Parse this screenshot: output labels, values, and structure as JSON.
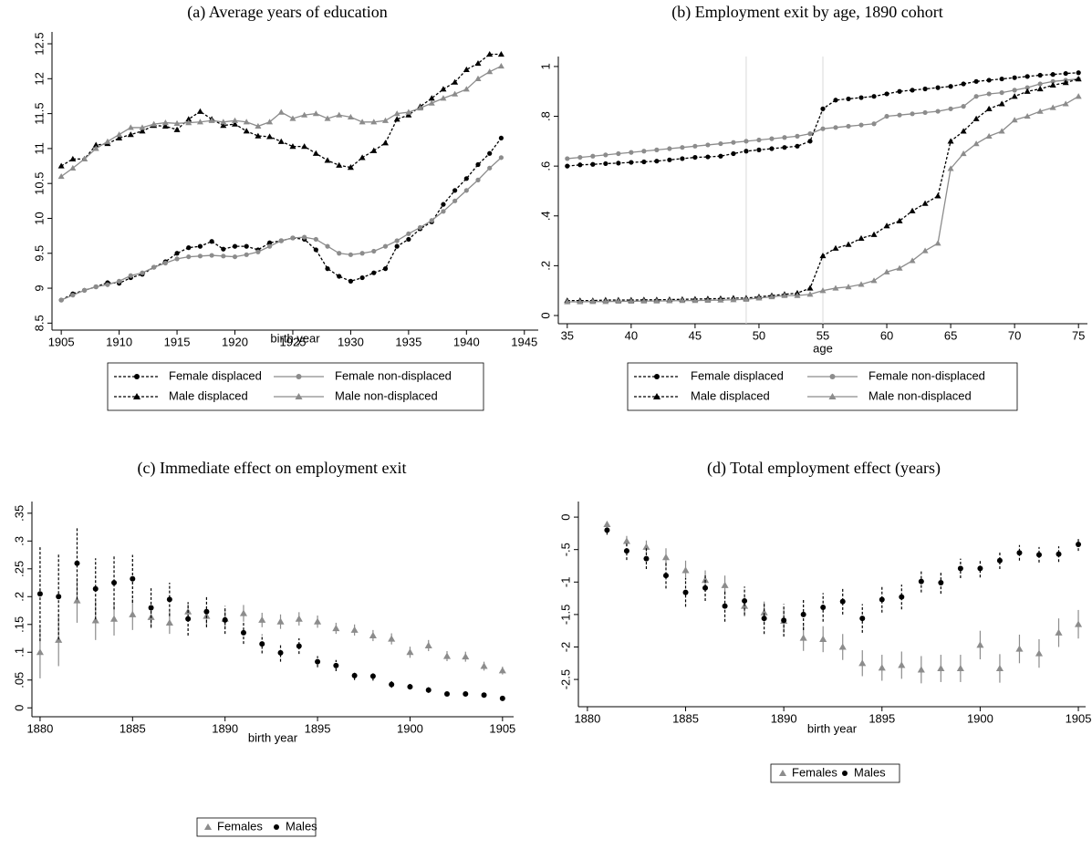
{
  "chart_data": [
    {
      "type": "line",
      "title": "(a) Average years of education",
      "x_label": "birth year",
      "x": [
        1905,
        1906,
        1907,
        1908,
        1909,
        1910,
        1911,
        1912,
        1913,
        1914,
        1915,
        1916,
        1917,
        1918,
        1919,
        1920,
        1921,
        1922,
        1923,
        1924,
        1925,
        1926,
        1927,
        1928,
        1929,
        1930,
        1931,
        1932,
        1933,
        1934,
        1935,
        1936,
        1937,
        1938,
        1939,
        1940,
        1941,
        1942,
        1943
      ],
      "series": [
        {
          "name": "Female displaced",
          "color": "#000000",
          "marker": "circle",
          "line": "dashed",
          "values": [
            8.83,
            8.92,
            8.97,
            9.02,
            9.08,
            9.07,
            9.15,
            9.2,
            9.3,
            9.38,
            9.5,
            9.58,
            9.6,
            9.67,
            9.56,
            9.6,
            9.6,
            9.55,
            9.65,
            9.68,
            9.72,
            9.7,
            9.55,
            9.28,
            9.17,
            9.1,
            9.15,
            9.22,
            9.28,
            9.6,
            9.7,
            9.85,
            9.95,
            10.2,
            10.4,
            10.57,
            10.77,
            10.93,
            11.15
          ]
        },
        {
          "name": "Female non-displaced",
          "color": "#8c8c8c",
          "marker": "circle",
          "line": "solid",
          "values": [
            8.83,
            8.9,
            8.97,
            9.02,
            9.05,
            9.1,
            9.18,
            9.22,
            9.3,
            9.36,
            9.42,
            9.45,
            9.46,
            9.47,
            9.46,
            9.45,
            9.48,
            9.52,
            9.6,
            9.68,
            9.72,
            9.73,
            9.7,
            9.6,
            9.5,
            9.48,
            9.5,
            9.53,
            9.6,
            9.68,
            9.78,
            9.87,
            9.97,
            10.1,
            10.25,
            10.4,
            10.55,
            10.72,
            10.87
          ]
        },
        {
          "name": "Male displaced",
          "color": "#000000",
          "marker": "triangle",
          "line": "dashed",
          "values": [
            10.75,
            10.85,
            10.85,
            11.05,
            11.07,
            11.15,
            11.2,
            11.25,
            11.33,
            11.32,
            11.27,
            11.42,
            11.53,
            11.42,
            11.33,
            11.35,
            11.25,
            11.18,
            11.17,
            11.1,
            11.03,
            11.03,
            10.93,
            10.83,
            10.76,
            10.73,
            10.87,
            10.97,
            11.08,
            11.42,
            11.48,
            11.6,
            11.72,
            11.85,
            11.95,
            12.13,
            12.22,
            12.35,
            12.35
          ]
        },
        {
          "name": "Male non-displaced",
          "color": "#8c8c8c",
          "marker": "triangle",
          "line": "solid",
          "values": [
            10.6,
            10.72,
            10.85,
            11.0,
            11.1,
            11.2,
            11.3,
            11.3,
            11.35,
            11.37,
            11.36,
            11.37,
            11.38,
            11.4,
            11.38,
            11.4,
            11.38,
            11.32,
            11.38,
            11.52,
            11.43,
            11.48,
            11.5,
            11.43,
            11.48,
            11.45,
            11.38,
            11.38,
            11.4,
            11.5,
            11.52,
            11.58,
            11.65,
            11.72,
            11.78,
            11.85,
            12.0,
            12.1,
            12.18
          ]
        }
      ],
      "xlim": [
        1904.2,
        1946.2
      ],
      "xticks": [
        1905,
        1910,
        1915,
        1920,
        1925,
        1930,
        1935,
        1940,
        1945
      ],
      "ylim": [
        8.4,
        12.67
      ],
      "yticks": [
        8.5,
        9,
        9.5,
        10,
        10.5,
        11,
        11.5,
        12,
        12.5
      ],
      "legend": "bottom"
    },
    {
      "type": "line",
      "title": "(b) Employment exit by age, 1890 cohort",
      "x_label": "age",
      "x": [
        35,
        36,
        37,
        38,
        39,
        40,
        41,
        42,
        43,
        44,
        45,
        46,
        47,
        48,
        49,
        50,
        51,
        52,
        53,
        54,
        55,
        56,
        57,
        58,
        59,
        60,
        61,
        62,
        63,
        64,
        65,
        66,
        67,
        68,
        69,
        70,
        71,
        72,
        73,
        74,
        75
      ],
      "series": [
        {
          "name": "Female displaced",
          "color": "#000000",
          "marker": "circle",
          "line": "dashed",
          "values": [
            0.6,
            0.605,
            0.607,
            0.61,
            0.612,
            0.615,
            0.617,
            0.62,
            0.625,
            0.63,
            0.635,
            0.637,
            0.64,
            0.65,
            0.66,
            0.665,
            0.67,
            0.675,
            0.68,
            0.7,
            0.83,
            0.865,
            0.87,
            0.875,
            0.88,
            0.89,
            0.9,
            0.905,
            0.91,
            0.915,
            0.92,
            0.93,
            0.94,
            0.945,
            0.95,
            0.955,
            0.96,
            0.965,
            0.968,
            0.972,
            0.975
          ]
        },
        {
          "name": "Female non-displaced",
          "color": "#8c8c8c",
          "marker": "circle",
          "line": "solid",
          "values": [
            0.63,
            0.635,
            0.64,
            0.645,
            0.65,
            0.655,
            0.66,
            0.665,
            0.67,
            0.675,
            0.68,
            0.685,
            0.69,
            0.695,
            0.7,
            0.705,
            0.71,
            0.715,
            0.72,
            0.73,
            0.75,
            0.755,
            0.76,
            0.765,
            0.77,
            0.8,
            0.805,
            0.81,
            0.815,
            0.82,
            0.83,
            0.84,
            0.88,
            0.89,
            0.895,
            0.905,
            0.915,
            0.93,
            0.94,
            0.945,
            0.95
          ]
        },
        {
          "name": "Male displaced",
          "color": "#000000",
          "marker": "triangle",
          "line": "dashed",
          "values": [
            0.06,
            0.06,
            0.06,
            0.062,
            0.062,
            0.062,
            0.063,
            0.063,
            0.064,
            0.065,
            0.066,
            0.067,
            0.068,
            0.07,
            0.07,
            0.075,
            0.08,
            0.085,
            0.09,
            0.11,
            0.24,
            0.27,
            0.285,
            0.31,
            0.325,
            0.36,
            0.38,
            0.42,
            0.45,
            0.48,
            0.7,
            0.74,
            0.79,
            0.83,
            0.85,
            0.88,
            0.9,
            0.91,
            0.925,
            0.935,
            0.95
          ]
        },
        {
          "name": "Male non-displaced",
          "color": "#8c8c8c",
          "marker": "triangle",
          "line": "solid",
          "values": [
            0.055,
            0.055,
            0.056,
            0.056,
            0.057,
            0.057,
            0.058,
            0.058,
            0.059,
            0.06,
            0.06,
            0.061,
            0.062,
            0.063,
            0.065,
            0.07,
            0.075,
            0.08,
            0.08,
            0.085,
            0.1,
            0.11,
            0.115,
            0.125,
            0.14,
            0.175,
            0.19,
            0.22,
            0.26,
            0.29,
            0.59,
            0.65,
            0.69,
            0.72,
            0.74,
            0.785,
            0.8,
            0.82,
            0.835,
            0.85,
            0.88
          ]
        }
      ],
      "xlim": [
        34.3,
        75.7
      ],
      "xticks": [
        35,
        40,
        45,
        50,
        55,
        60,
        65,
        70,
        75
      ],
      "ylim": [
        -0.033,
        1.04
      ],
      "yticks": [
        0,
        {
          "value": 0.2,
          "label": ".2"
        },
        {
          "value": 0.4,
          "label": ".4"
        },
        {
          "value": 0.6,
          "label": ".6"
        },
        {
          "value": 0.8,
          "label": ".8"
        },
        1
      ],
      "xlines": [
        49,
        55
      ],
      "legend": "bottom"
    },
    {
      "type": "errorbar",
      "title": "(c) Immediate effect on employment exit",
      "x_label": "birth year",
      "x": [
        1880,
        1881,
        1882,
        1883,
        1884,
        1885,
        1886,
        1887,
        1888,
        1889,
        1890,
        1891,
        1892,
        1893,
        1894,
        1895,
        1896,
        1897,
        1898,
        1899,
        1900,
        1901,
        1902,
        1903,
        1904,
        1905
      ],
      "series": [
        {
          "name": "Females",
          "color": "#8c8c8c",
          "marker": "triangle",
          "errorbar_style": "solid",
          "values": [
            0.1,
            0.122,
            0.193,
            0.157,
            0.16,
            0.168,
            0.163,
            0.153,
            0.173,
            0.165,
            0.16,
            0.17,
            0.158,
            0.155,
            0.16,
            0.155,
            0.143,
            0.14,
            0.13,
            0.124,
            0.1,
            0.112,
            0.093,
            0.092,
            0.075,
            0.067
          ],
          "errors": [
            0.047,
            0.047,
            0.04,
            0.035,
            0.03,
            0.028,
            0.02,
            0.02,
            0.017,
            0.016,
            0.016,
            0.015,
            0.013,
            0.013,
            0.012,
            0.011,
            0.01,
            0.01,
            0.01,
            0.01,
            0.01,
            0.01,
            0.009,
            0.009,
            0.008,
            0.007
          ]
        },
        {
          "name": "Males",
          "color": "#000000",
          "marker": "circle",
          "errorbar_style": "dashed",
          "values": [
            0.205,
            0.2,
            0.26,
            0.214,
            0.225,
            0.232,
            0.18,
            0.195,
            0.16,
            0.173,
            0.158,
            0.135,
            0.115,
            0.099,
            0.111,
            0.083,
            0.076,
            0.058,
            0.057,
            0.042,
            0.038,
            0.032,
            0.025,
            0.025,
            0.023,
            0.017
          ],
          "errors": [
            0.085,
            0.077,
            0.065,
            0.055,
            0.048,
            0.043,
            0.035,
            0.03,
            0.03,
            0.028,
            0.025,
            0.02,
            0.017,
            0.016,
            0.014,
            0.01,
            0.01,
            0.008,
            0.008,
            0.006,
            0.005,
            0.005,
            0.004,
            0.004,
            0.004,
            0.003
          ]
        }
      ],
      "xlim": [
        1879.56,
        1905.6
      ],
      "xticks": [
        1880,
        1885,
        1890,
        1895,
        1900,
        1905
      ],
      "ylim": [
        -0.016,
        0.371
      ],
      "yticks": [
        0,
        {
          "value": 0.05,
          "label": ".05"
        },
        {
          "value": 0.1,
          "label": ".1"
        },
        {
          "value": 0.15,
          "label": ".15"
        },
        {
          "value": 0.2,
          "label": ".2"
        },
        {
          "value": 0.25,
          "label": ".25"
        },
        {
          "value": 0.3,
          "label": ".3"
        },
        {
          "value": 0.35,
          "label": ".35"
        }
      ],
      "legend": "bottom"
    },
    {
      "type": "errorbar",
      "title": "(d) Total employment effect (years)",
      "x_label": "birth year",
      "x": [
        1881,
        1882,
        1883,
        1884,
        1885,
        1886,
        1887,
        1888,
        1889,
        1890,
        1891,
        1892,
        1893,
        1894,
        1895,
        1896,
        1897,
        1898,
        1899,
        1900,
        1901,
        1902,
        1903,
        1904,
        1905
      ],
      "series": [
        {
          "name": "Females",
          "color": "#8c8c8c",
          "marker": "triangle",
          "errorbar_style": "solid",
          "values": [
            -0.11,
            -0.37,
            -0.46,
            -0.62,
            -0.82,
            -0.97,
            -1.05,
            -1.37,
            -1.47,
            -1.6,
            -1.86,
            -1.88,
            -2.0,
            -2.25,
            -2.32,
            -2.28,
            -2.35,
            -2.33,
            -2.33,
            -1.97,
            -2.33,
            -2.03,
            -2.1,
            -1.78,
            -1.65
          ],
          "errors": [
            0.03,
            0.08,
            0.1,
            0.14,
            0.15,
            0.15,
            0.15,
            0.16,
            0.17,
            0.18,
            0.2,
            0.2,
            0.2,
            0.2,
            0.2,
            0.21,
            0.21,
            0.21,
            0.21,
            0.22,
            0.22,
            0.22,
            0.22,
            0.22,
            0.22
          ]
        },
        {
          "name": "Males",
          "color": "#000000",
          "marker": "circle",
          "errorbar_style": "dashed",
          "values": [
            -0.2,
            -0.52,
            -0.64,
            -0.9,
            -1.16,
            -1.09,
            -1.37,
            -1.29,
            -1.56,
            -1.59,
            -1.5,
            -1.39,
            -1.3,
            -1.56,
            -1.27,
            -1.23,
            -0.99,
            -1.01,
            -0.79,
            -0.79,
            -0.67,
            -0.55,
            -0.58,
            -0.57,
            -0.42
          ],
          "errors": [
            0.07,
            0.14,
            0.16,
            0.2,
            0.22,
            0.2,
            0.24,
            0.22,
            0.24,
            0.25,
            0.24,
            0.22,
            0.2,
            0.22,
            0.2,
            0.19,
            0.17,
            0.17,
            0.15,
            0.14,
            0.13,
            0.12,
            0.12,
            0.12,
            0.1
          ]
        }
      ],
      "xlim": [
        1879.54,
        1905.37
      ],
      "xticks": [
        1880,
        1885,
        1890,
        1895,
        1900,
        1905
      ],
      "ylim": [
        -2.92,
        0.24
      ],
      "yticks": [
        0,
        {
          "value": -0.5,
          "label": "-.5"
        },
        -1,
        -1.5,
        -2,
        -2.5
      ],
      "legend": "bottom"
    }
  ]
}
